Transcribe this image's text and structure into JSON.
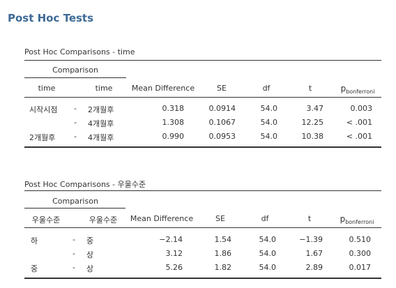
{
  "heading": "Post Hoc Tests",
  "tables": [
    {
      "title": "Post Hoc Comparisons - time",
      "group_header": "Comparison",
      "headers": {
        "col1": "time",
        "col2": "time",
        "mean_diff": "Mean Difference",
        "se": "SE",
        "df": "df",
        "t": "t",
        "p_main": "p",
        "p_sub": "bonferroni"
      },
      "rows": [
        {
          "a": "시작시점",
          "sep": "-",
          "b": "2개월후",
          "md": "0.318",
          "se": "0.0914",
          "df": "54.0",
          "t": "3.47",
          "p": "0.003"
        },
        {
          "a": "",
          "sep": "-",
          "b": "4개월후",
          "md": "1.308",
          "se": "0.1067",
          "df": "54.0",
          "t": "12.25",
          "p": "< .001"
        },
        {
          "a": "2개월후",
          "sep": "-",
          "b": "4개월후",
          "md": "0.990",
          "se": "0.0953",
          "df": "54.0",
          "t": "10.38",
          "p": "< .001"
        }
      ]
    },
    {
      "title": "Post Hoc Comparisons - 우울수준",
      "group_header": "Comparison",
      "headers": {
        "col1": "우울수준",
        "col2": "우울수준",
        "mean_diff": "Mean Difference",
        "se": "SE",
        "df": "df",
        "t": "t",
        "p_main": "p",
        "p_sub": "bonferroni"
      },
      "rows": [
        {
          "a": "하",
          "sep": "-",
          "b": "중",
          "md": "−2.14",
          "se": "1.54",
          "df": "54.0",
          "t": "−1.39",
          "p": "0.510"
        },
        {
          "a": "",
          "sep": "-",
          "b": "상",
          "md": "3.12",
          "se": "1.86",
          "df": "54.0",
          "t": "1.67",
          "p": "0.300"
        },
        {
          "a": "중",
          "sep": "-",
          "b": "상",
          "md": "5.26",
          "se": "1.82",
          "df": "54.0",
          "t": "2.89",
          "p": "0.017"
        }
      ]
    }
  ]
}
